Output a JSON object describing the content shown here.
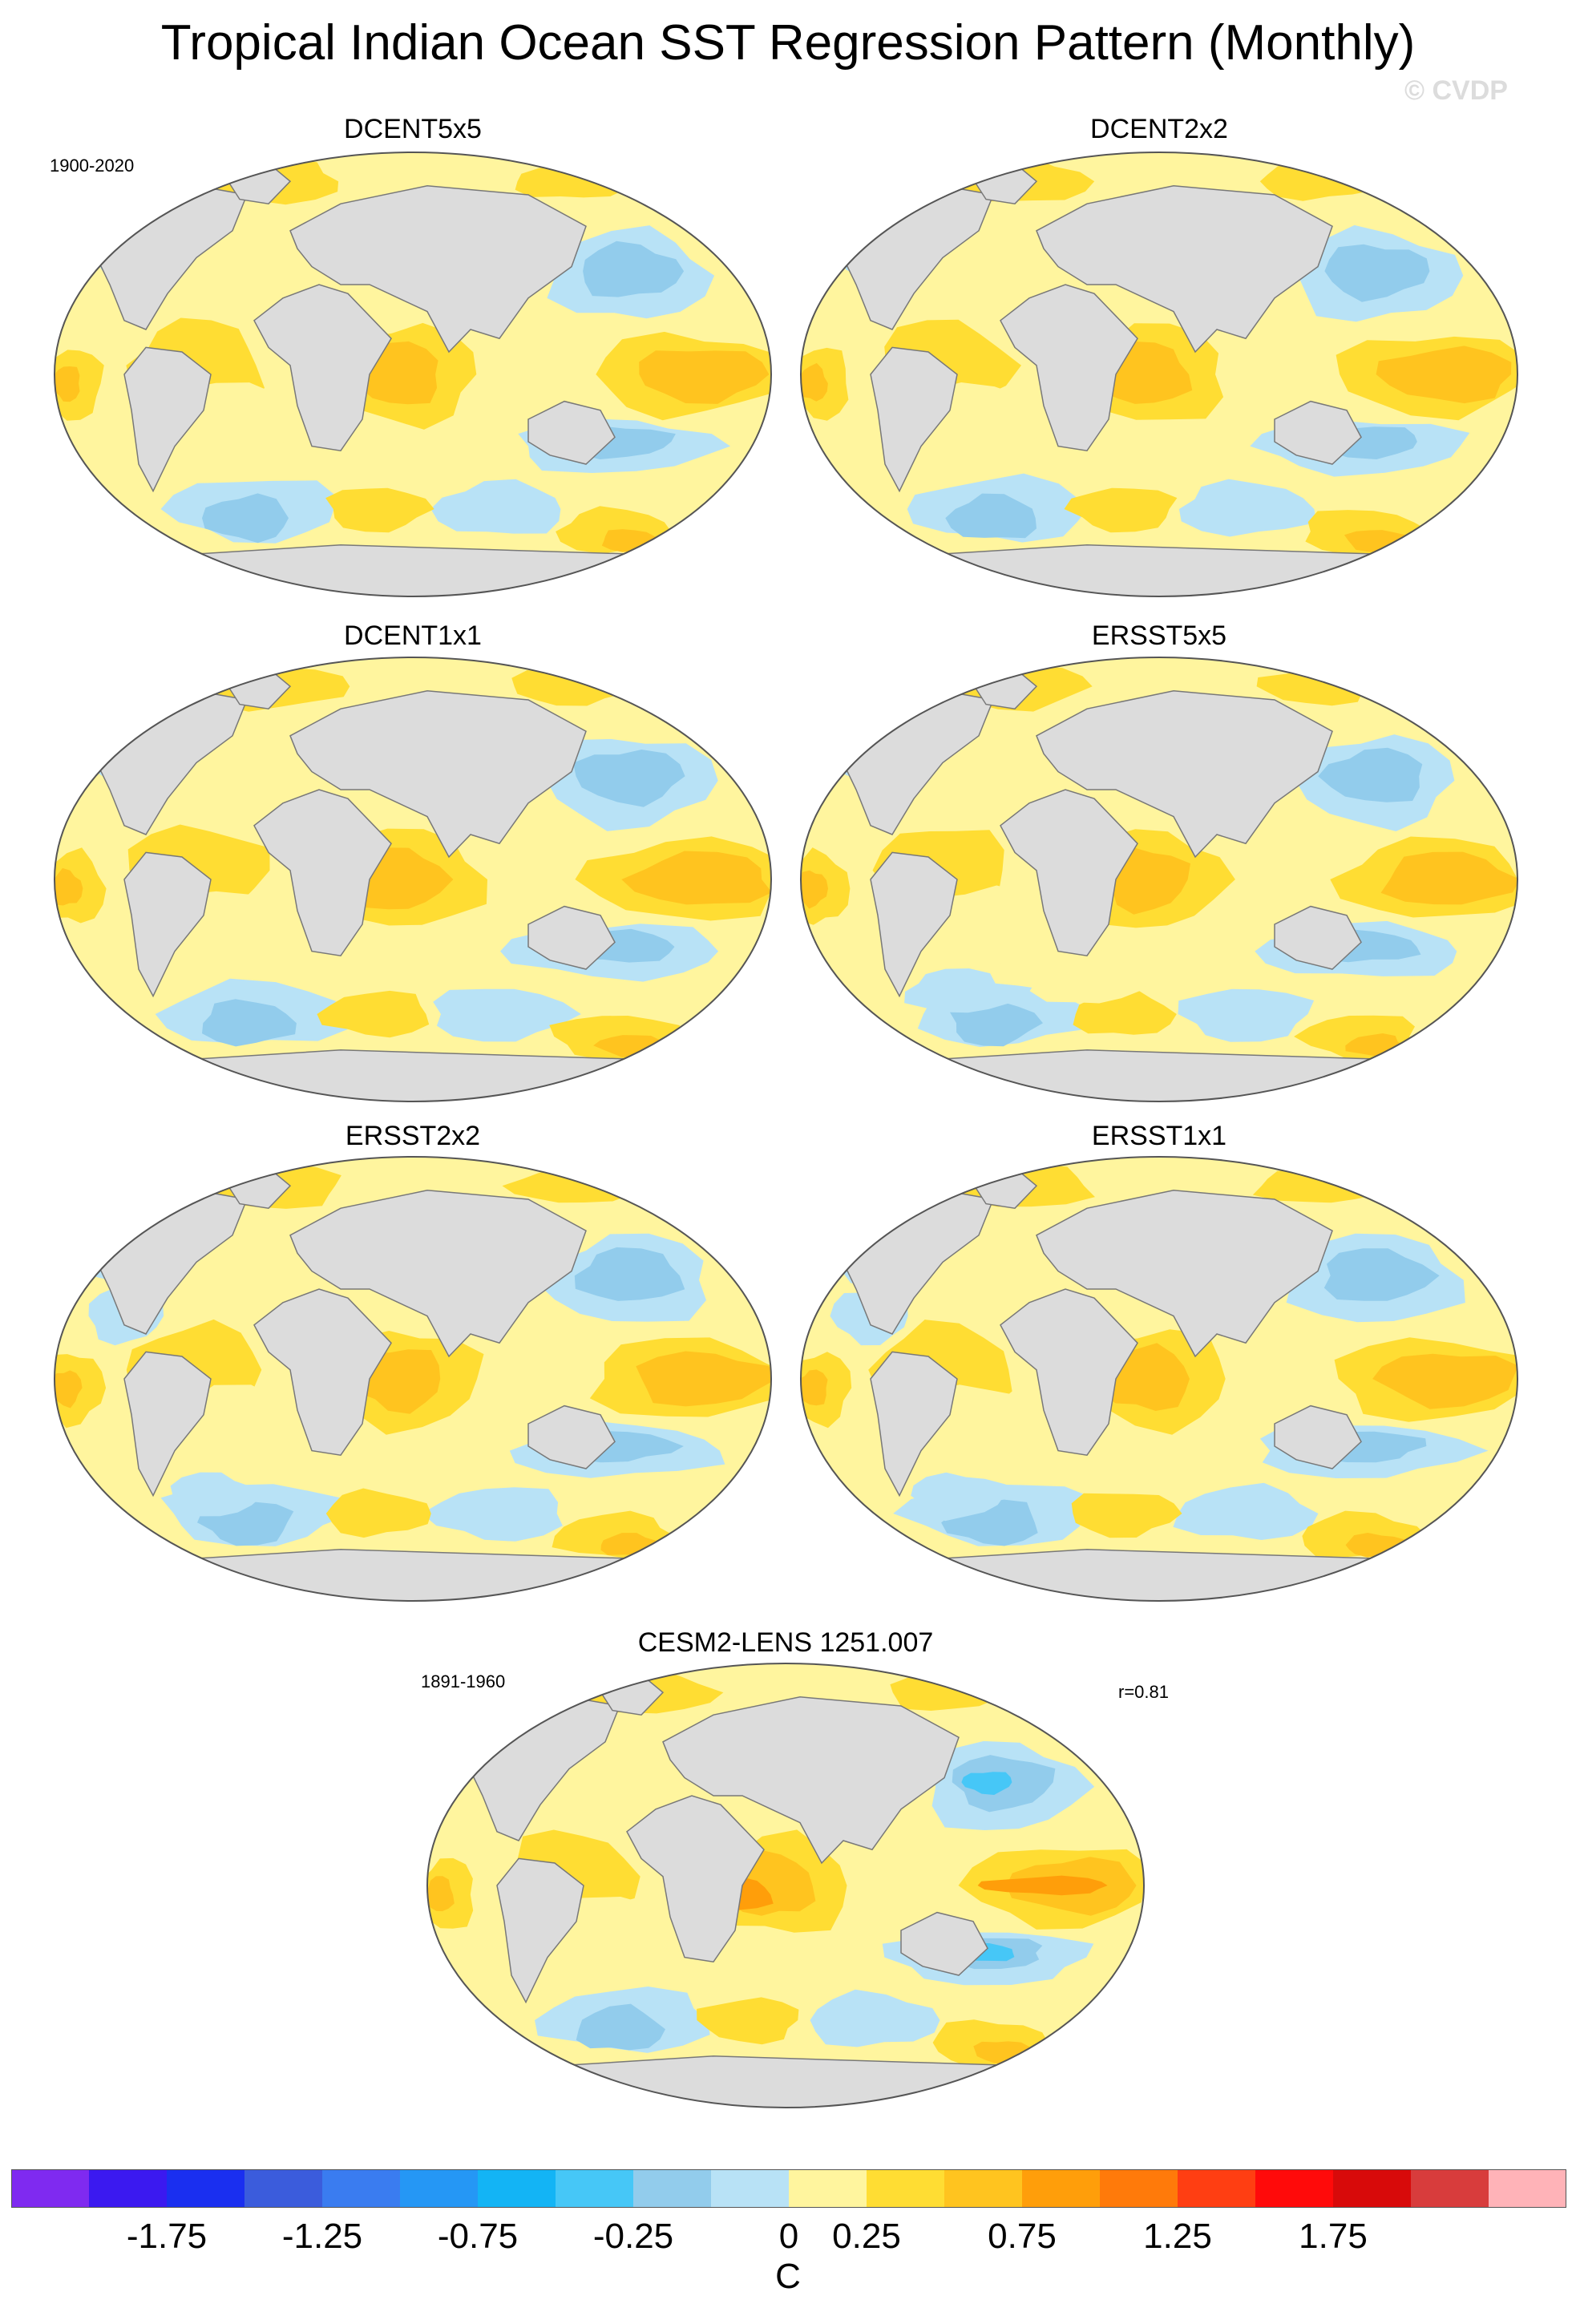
{
  "title": "Tropical Indian Ocean SST Regression Pattern (Monthly)",
  "watermark": "© CVDP",
  "colors": {
    "land": "#dcdcdc",
    "coast": "#787878",
    "ocean_outline": "#555555"
  },
  "panels": [
    {
      "id": "dcent5x5",
      "title": "DCENT5x5",
      "period": "1900-2020",
      "r": "",
      "variant": 0
    },
    {
      "id": "dcent2x2",
      "title": "DCENT2x2",
      "period": "",
      "r": "",
      "variant": 1
    },
    {
      "id": "dcent1x1",
      "title": "DCENT1x1",
      "period": "",
      "r": "",
      "variant": 2
    },
    {
      "id": "ersst5x5",
      "title": "ERSST5x5",
      "period": "",
      "r": "",
      "variant": 3
    },
    {
      "id": "ersst2x2",
      "title": "ERSST2x2",
      "period": "",
      "r": "",
      "variant": 4
    },
    {
      "id": "ersst1x1",
      "title": "ERSST1x1",
      "period": "",
      "r": "",
      "variant": 5
    },
    {
      "id": "cesm2",
      "title": "CESM2-LENS 1251.007",
      "period": "1891-1960",
      "r": "r=0.81",
      "variant": 6
    }
  ],
  "colorbar": {
    "unit": "C",
    "colors": [
      "#7f2af0",
      "#3b19f0",
      "#1a2ff0",
      "#3b5cdc",
      "#3a7cf0",
      "#2597f5",
      "#13b4f5",
      "#46c7f7",
      "#92ccec",
      "#b8e2f6",
      "#fff59e",
      "#ffdd33",
      "#ffc41f",
      "#ff9e0a",
      "#ff7a0a",
      "#ff3e12",
      "#ff0a0a",
      "#d80a0a",
      "#d83c3c",
      "#ffb3b8"
    ],
    "labels": [
      "-1.75",
      "-1.25",
      "-0.75",
      "-0.25",
      "0",
      "0.25",
      "0.75",
      "1.25",
      "1.75"
    ]
  }
}
